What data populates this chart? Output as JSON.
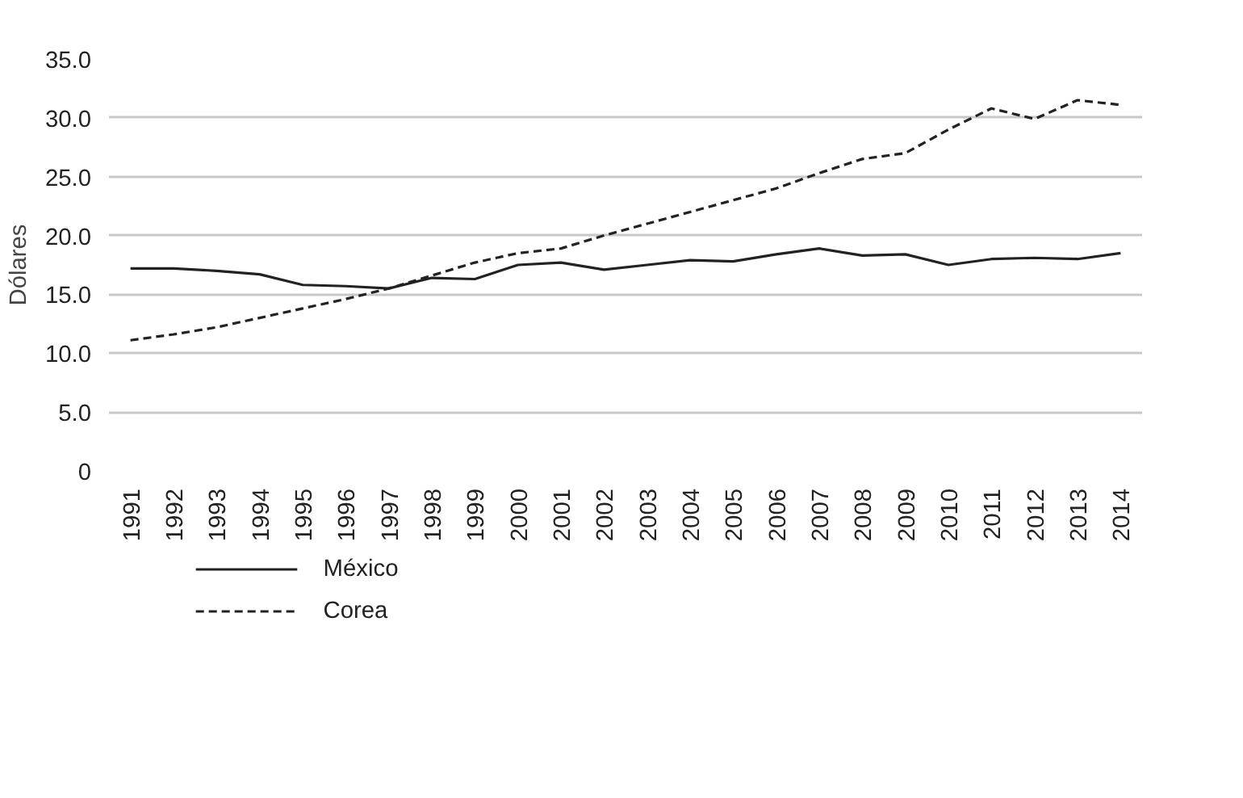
{
  "chart_data": {
    "type": "line",
    "ylabel": "Dólares",
    "categories": [
      "1991",
      "1992",
      "1993",
      "1994",
      "1995",
      "1996",
      "1997",
      "1998",
      "1999",
      "2000",
      "2001",
      "2002",
      "2003",
      "2004",
      "2005",
      "2006",
      "2007",
      "2008",
      "2009",
      "2010",
      "2011",
      "2012",
      "2013",
      "2014"
    ],
    "series": [
      {
        "name": "México",
        "color": "#222222",
        "line_style": "solid",
        "values": [
          17.2,
          17.2,
          17.0,
          16.7,
          15.8,
          15.7,
          15.5,
          16.4,
          16.3,
          17.5,
          17.7,
          17.1,
          17.5,
          17.9,
          17.8,
          18.4,
          18.9,
          18.3,
          18.4,
          17.5,
          18.0,
          18.1,
          18.0,
          18.5
        ]
      },
      {
        "name": "Corea",
        "color": "#222222",
        "line_style": "dashed",
        "values": [
          11.1,
          11.6,
          12.2,
          13.0,
          13.8,
          14.6,
          15.5,
          16.6,
          17.7,
          18.5,
          18.9,
          20.0,
          21.0,
          22.0,
          23.0,
          24.0,
          25.3,
          26.5,
          27.0,
          29.0,
          30.8,
          29.9,
          31.5,
          31.1
        ]
      }
    ],
    "ylim": [
      0,
      35
    ],
    "yticks": [
      {
        "value": 0,
        "label": "0"
      },
      {
        "value": 5,
        "label": "5.0"
      },
      {
        "value": 10,
        "label": "10.0"
      },
      {
        "value": 15,
        "label": "15.0"
      },
      {
        "value": 20,
        "label": "20.0"
      },
      {
        "value": 25,
        "label": "25.0"
      },
      {
        "value": 30,
        "label": "30.0"
      },
      {
        "value": 35,
        "label": "35.0"
      }
    ],
    "grid": "y",
    "legend": "bottom left",
    "marker": "none"
  }
}
